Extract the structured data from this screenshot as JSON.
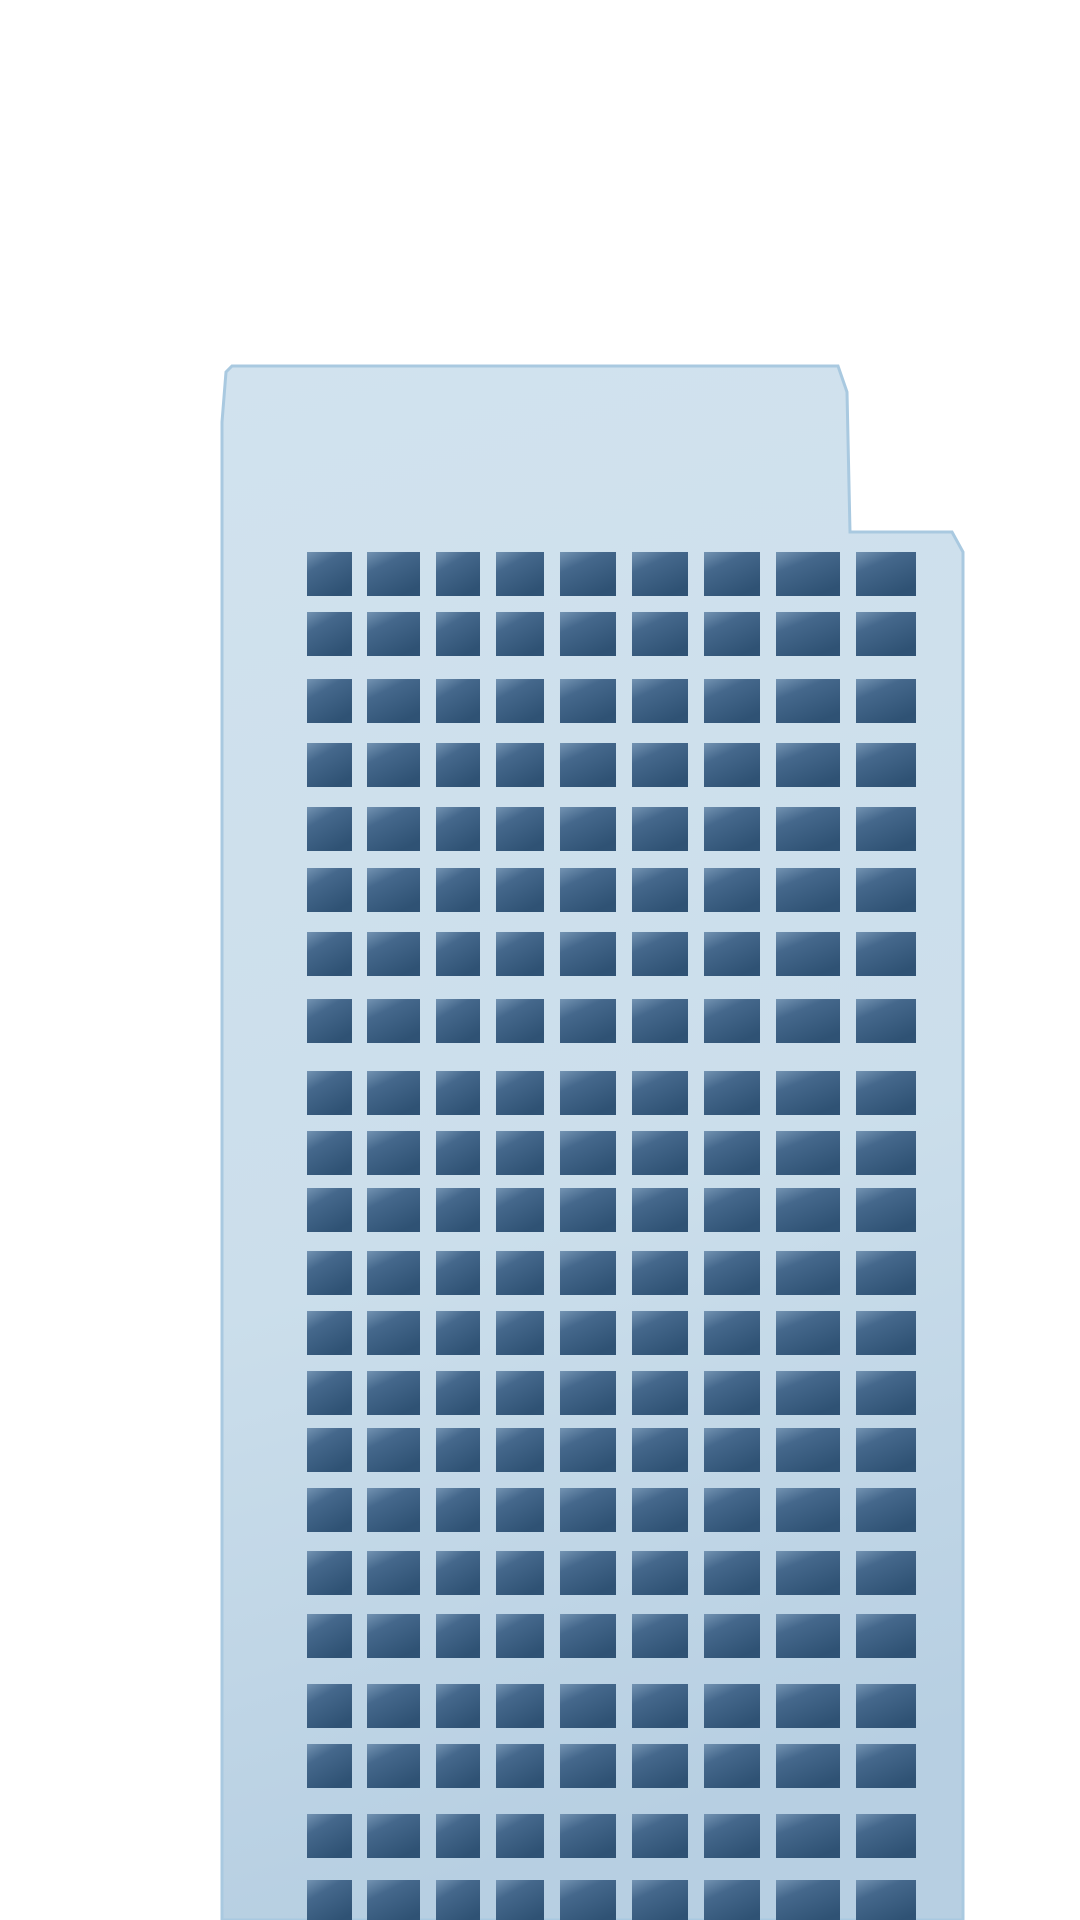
{
  "scene": {
    "subject": "office-tower",
    "background_color": "#ffffff",
    "facade_color_top": "#d1e2ee",
    "facade_color_bottom": "#b7cfe2",
    "facade_edge_color": "#a9c9e0",
    "window_color_top": "#7090b0",
    "window_color_bottom": "#33587a",
    "window_grid": {
      "columns": 9,
      "rows": 22
    }
  }
}
